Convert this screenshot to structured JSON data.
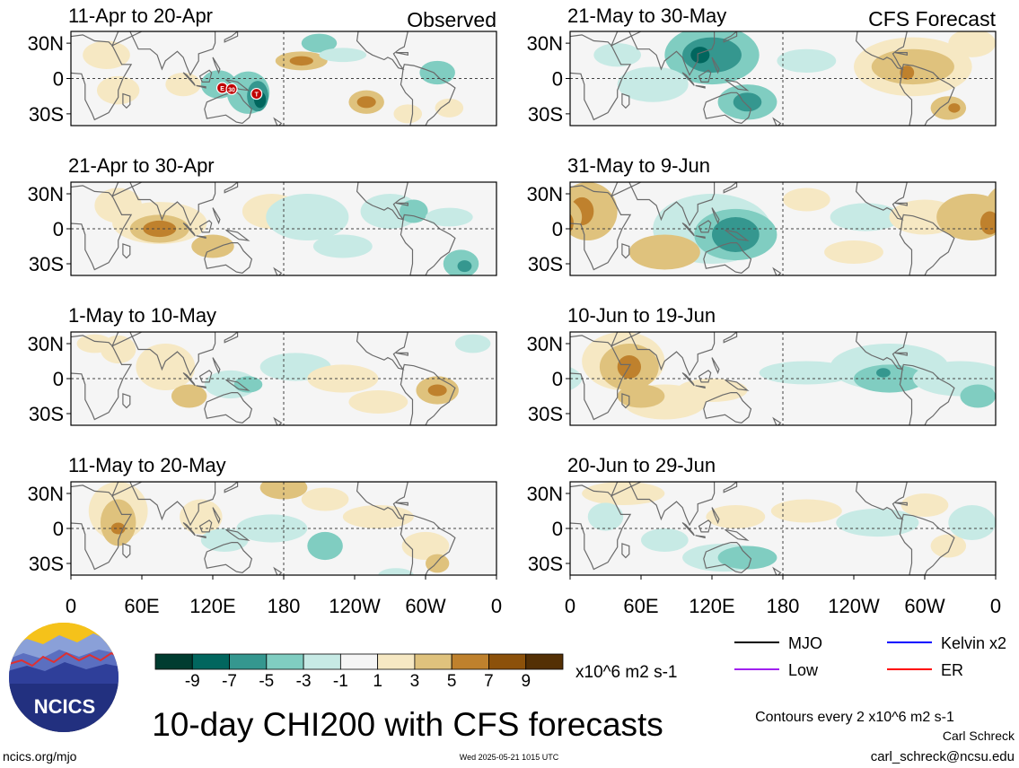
{
  "figure": {
    "title": "10-day CHI200 with CFS forecasts",
    "site": "ncics.org/mjo",
    "timestamp": "Wed 2025-05-21 1015 UTC",
    "author": "Carl Schreck",
    "email": "carl_schreck@ncsu.edu",
    "contour_note": "Contours every 2 x10^6 m2 s-1",
    "logo_text": "NCICS"
  },
  "column_labels": {
    "left": "Observed",
    "right": "CFS Forecast"
  },
  "colorbar": {
    "unit": "x10^6 m2 s-1",
    "tick_labels": [
      "-9",
      "-7",
      "-5",
      "-3",
      "-1",
      "1",
      "3",
      "5",
      "7",
      "9"
    ],
    "colors": [
      "#003c30",
      "#01665e",
      "#35978f",
      "#80cdc1",
      "#c7eae5",
      "#f5f5f5",
      "#f6e8c3",
      "#dfc27d",
      "#bf812d",
      "#8c510a",
      "#543005"
    ]
  },
  "legend": {
    "items": [
      {
        "label": "MJO",
        "color": "#000000"
      },
      {
        "label": "Kelvin x2",
        "color": "#0000ff"
      },
      {
        "label": "Low",
        "color": "#a020f0"
      },
      {
        "label": "ER",
        "color": "#ff0000"
      }
    ]
  },
  "chart_data": {
    "type": "heatmap",
    "variable": "CHI200",
    "y_tick_labels": [
      "30N",
      "0",
      "30S"
    ],
    "x_tick_labels": [
      "0",
      "60E",
      "120E",
      "180",
      "120W",
      "60W",
      "0"
    ],
    "panels": [
      {
        "label": "11-Apr to 20-Apr",
        "column": "left",
        "row": 0
      },
      {
        "label": "21-Apr to 30-Apr",
        "column": "left",
        "row": 1
      },
      {
        "label": "1-May to 10-May",
        "column": "left",
        "row": 2
      },
      {
        "label": "11-May to 20-May",
        "column": "left",
        "row": 3
      },
      {
        "label": "21-May to 30-May",
        "column": "right",
        "row": 0
      },
      {
        "label": "31-May to 9-Jun",
        "column": "right",
        "row": 1
      },
      {
        "label": "10-Jun to 19-Jun",
        "column": "right",
        "row": 2
      },
      {
        "label": "20-Jun to 29-Jun",
        "column": "right",
        "row": 3
      }
    ],
    "storm_markers": [
      {
        "label": "E",
        "panel": 0,
        "lon": 128,
        "lat": -8
      },
      {
        "label": "30",
        "panel": 0,
        "lon": 136,
        "lat": -9
      },
      {
        "label": "T",
        "panel": 0,
        "lon": 157,
        "lat": -13
      }
    ]
  }
}
